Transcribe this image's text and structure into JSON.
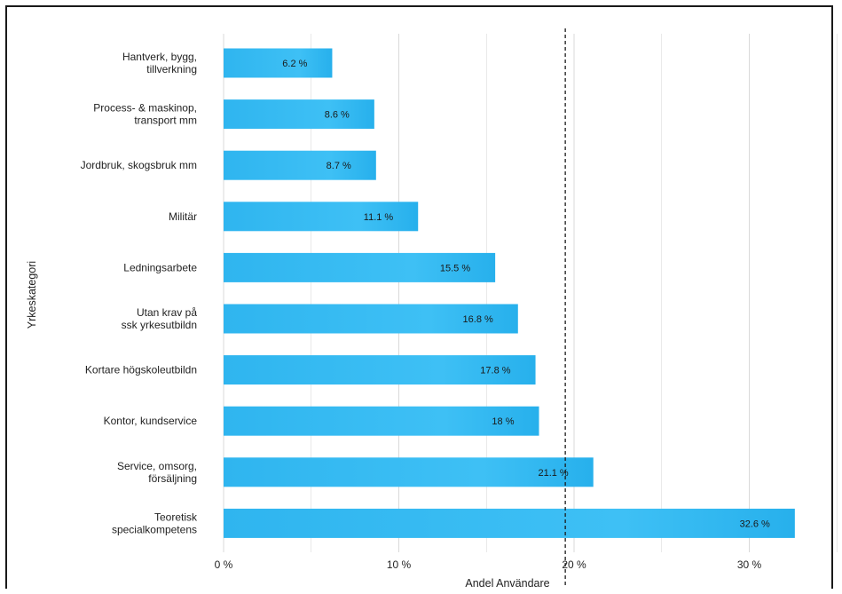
{
  "chart_data": {
    "type": "bar",
    "orientation": "horizontal",
    "categories": [
      [
        "Hantverk, bygg,",
        "tillverkning"
      ],
      [
        "Process- & maskinop,",
        "transport mm"
      ],
      [
        "Jordbruk, skogsbruk mm"
      ],
      [
        "Militär"
      ],
      [
        "Ledningsarbete"
      ],
      [
        "Utan krav på",
        "ssk yrkesutbildn"
      ],
      [
        "Kortare högskoleutbildn"
      ],
      [
        "Kontor, kundservice"
      ],
      [
        "Service, omsorg,",
        "försäljning"
      ],
      [
        "Teoretisk",
        "specialkompetens"
      ]
    ],
    "values": [
      6.2,
      8.6,
      8.7,
      11.1,
      15.5,
      16.8,
      17.8,
      18,
      21.1,
      32.6
    ],
    "value_labels": [
      "6.2 %",
      "8.6 %",
      "8.7 %",
      "11.1 %",
      "15.5 %",
      "16.8 %",
      "17.8 %",
      "18 %",
      "21.1 %",
      "32.6 %"
    ],
    "xlabel": "Andel Användare",
    "ylabel": "Yrkeskategori",
    "xlim": [
      0,
      35
    ],
    "xticks": [
      0,
      10,
      20,
      30
    ],
    "xtick_labels": [
      "0 %",
      "10 %",
      "20 %",
      "30 %"
    ],
    "reference_line": 19.5,
    "grid": true,
    "colors": {
      "bar": "#27b2ee",
      "bar_light": "#4cc6f7",
      "grid": "#d9d9d9",
      "reference": "#1a1a1a"
    }
  }
}
